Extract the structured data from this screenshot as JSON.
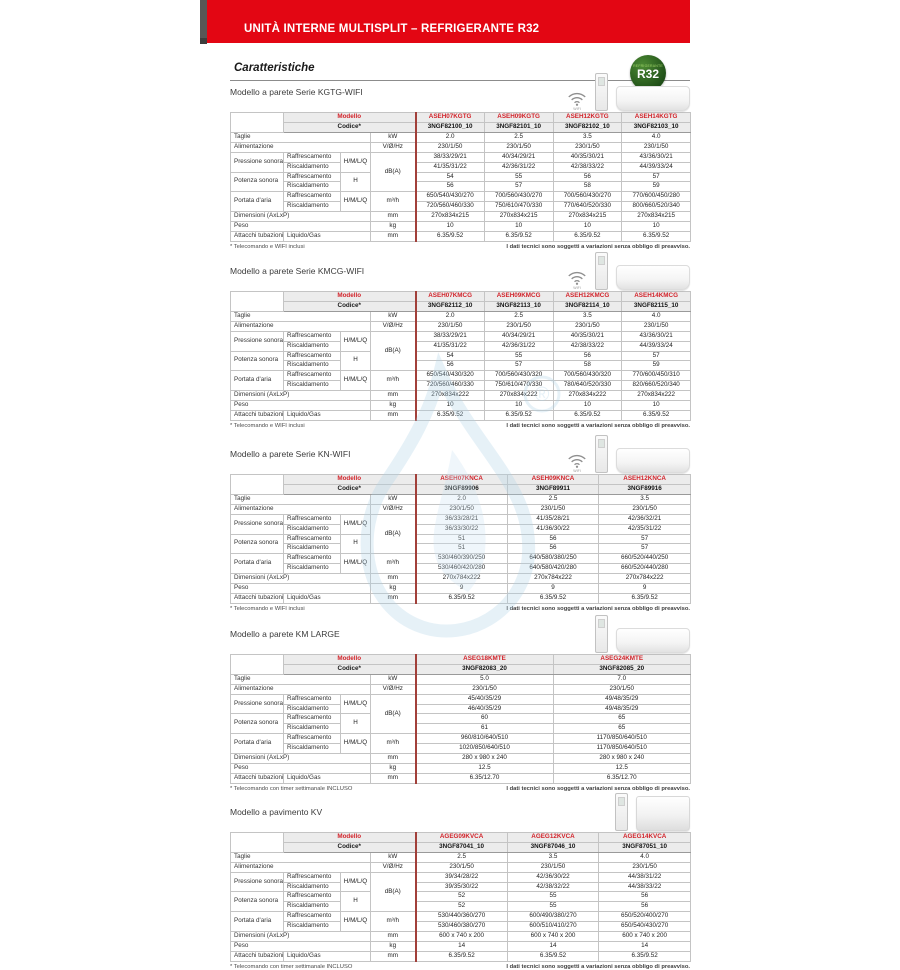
{
  "banner": {
    "title": "UNITÀ INTERNE MULTISPLIT – REFRIGERANTE R32"
  },
  "heading": "Caratteristiche",
  "badge": {
    "small": "REFRIGERANTE",
    "big": "R32"
  },
  "wifi_label": "WIFI",
  "labels": {
    "modello": "Modello",
    "codice": "Codice*",
    "taglie": "Taglie",
    "alimentazione": "Alimentazione",
    "pressione": "Pressione sonora",
    "potenza": "Potenza sonora",
    "portata": "Portata d'aria",
    "dimensioni": "Dimensioni (AxLxP)",
    "peso": "Peso",
    "attacchi": "Attacchi tubazioni",
    "raffrescamento": "Raffrescamento",
    "riscaldamento": "Riscaldamento",
    "liquido_gas": "Liquido/Gas",
    "hmlq": "H/M/L/Q",
    "h": "H",
    "u_kw": "kW",
    "u_vhz": "V/Ø/Hz",
    "u_dba": "dB(A)",
    "u_m3h": "m³/h",
    "u_mm": "mm",
    "u_kg": "kg"
  },
  "footnote_right": "I dati tecnici sono soggetti a variazioni senza obbligo di preavviso.",
  "colors": {
    "banner_red": "#e30613",
    "accent_red": "#d2232a",
    "rule_red": "#a2403a",
    "badge_green": "#1e4d17",
    "watermark_blue": "#aed2e8"
  },
  "tables": [
    {
      "title": "Modello a parete Serie KGTG-WIFI",
      "icons": [
        "wifi",
        "remote",
        "wall-unit"
      ],
      "models": [
        "ASEH07KGTG",
        "ASEH09KGTG",
        "ASEH12KGTG",
        "ASEH14KGTG"
      ],
      "codes": [
        "3NGF82100_10",
        "3NGF82101_10",
        "3NGF82102_10",
        "3NGF82103_10"
      ],
      "taglie": [
        "2.0",
        "2.5",
        "3.5",
        "4.0"
      ],
      "alimentazione": [
        "230/1/50",
        "230/1/50",
        "230/1/50",
        "230/1/50"
      ],
      "pressione": {
        "raff": [
          "38/33/29/21",
          "40/34/29/21",
          "40/35/30/21",
          "43/36/30/21"
        ],
        "risc": [
          "41/35/31/22",
          "42/36/31/22",
          "42/38/33/22",
          "44/39/33/24"
        ]
      },
      "potenza": {
        "raff": [
          "54",
          "55",
          "56",
          "57"
        ],
        "risc": [
          "56",
          "57",
          "58",
          "59"
        ]
      },
      "portata": {
        "raff": [
          "650/540/430/270",
          "700/560/430/270",
          "700/560/430/270",
          "770/600/450/280"
        ],
        "risc": [
          "720/560/460/330",
          "750/610/470/330",
          "770/640/520/330",
          "800/660/520/340"
        ]
      },
      "dimensioni": [
        "270x834x215",
        "270x834x215",
        "270x834x215",
        "270x834x215"
      ],
      "peso": [
        "10",
        "10",
        "10",
        "10"
      ],
      "attacchi": [
        "6.35/9.52",
        "6.35/9.52",
        "6.35/9.52",
        "6.35/9.52"
      ],
      "footnote": "* Telecomando e WIFI inclusi"
    },
    {
      "title": "Modello a parete Serie KMCG-WIFI",
      "icons": [
        "wifi",
        "remote",
        "wall-unit"
      ],
      "models": [
        "ASEH07KMCG",
        "ASEH09KMCG",
        "ASEH12KMCG",
        "ASEH14KMCG"
      ],
      "codes": [
        "3NGF82112_10",
        "3NGF82113_10",
        "3NGF82114_10",
        "3NGF82115_10"
      ],
      "taglie": [
        "2.0",
        "2.5",
        "3.5",
        "4.0"
      ],
      "alimentazione": [
        "230/1/50",
        "230/1/50",
        "230/1/50",
        "230/1/50"
      ],
      "pressione": {
        "raff": [
          "38/33/29/21",
          "40/34/29/21",
          "40/35/30/21",
          "43/36/30/21"
        ],
        "risc": [
          "41/35/31/22",
          "42/36/31/22",
          "42/38/33/22",
          "44/39/33/24"
        ]
      },
      "potenza": {
        "raff": [
          "54",
          "55",
          "56",
          "57"
        ],
        "risc": [
          "56",
          "57",
          "58",
          "59"
        ]
      },
      "portata": {
        "raff": [
          "650/540/430/320",
          "700/560/430/320",
          "700/560/430/320",
          "770/600/450/310"
        ],
        "risc": [
          "720/560/460/330",
          "750/610/470/330",
          "780/640/520/330",
          "820/660/520/340"
        ]
      },
      "dimensioni": [
        "270x834x222",
        "270x834x222",
        "270x834x222",
        "270x834x222"
      ],
      "peso": [
        "10",
        "10",
        "10",
        "10"
      ],
      "attacchi": [
        "6.35/9.52",
        "6.35/9.52",
        "6.35/9.52",
        "6.35/9.52"
      ],
      "footnote": "* Telecomando e WIFI inclusi"
    },
    {
      "title": "Modello a parete Serie KN-WIFI",
      "icons": [
        "wifi",
        "remote",
        "wall-unit"
      ],
      "models": [
        "ASEH07KNCA",
        "ASEH09KNCA",
        "ASEH12KNCA"
      ],
      "codes": [
        "3NGF89906",
        "3NGF89911",
        "3NGF89916"
      ],
      "taglie": [
        "2.0",
        "2.5",
        "3.5"
      ],
      "alimentazione": [
        "230/1/50",
        "230/1/50",
        "230/1/50"
      ],
      "pressione": {
        "raff": [
          "36/33/28/21",
          "41/35/28/21",
          "42/36/32/21"
        ],
        "risc": [
          "36/33/30/22",
          "41/36/30/22",
          "42/35/31/22"
        ]
      },
      "potenza": {
        "raff": [
          "51",
          "56",
          "57"
        ],
        "risc": [
          "51",
          "56",
          "57"
        ]
      },
      "portata": {
        "raff": [
          "530/460/390/250",
          "640/580/380/250",
          "660/520/440/250"
        ],
        "risc": [
          "530/460/420/280",
          "640/580/420/280",
          "660/520/440/280"
        ]
      },
      "dimensioni": [
        "270x784x222",
        "270x784x222",
        "270x784x222"
      ],
      "peso": [
        "9",
        "9",
        "9"
      ],
      "attacchi": [
        "6.35/9.52",
        "6.35/9.52",
        "6.35/9.52"
      ],
      "footnote": "* Telecomando e WIFI inclusi"
    },
    {
      "title": "Modello a parete KM LARGE",
      "icons": [
        "remote",
        "wall-unit"
      ],
      "models": [
        "ASEG18KMTE",
        "ASEG24KMTE"
      ],
      "codes": [
        "3NGF82083_20",
        "3NGF82085_20"
      ],
      "taglie": [
        "5.0",
        "7.0"
      ],
      "alimentazione": [
        "230/1/50",
        "230/1/50"
      ],
      "pressione": {
        "raff": [
          "45/40/35/29",
          "49/48/35/29"
        ],
        "risc": [
          "46/40/35/29",
          "49/48/35/29"
        ]
      },
      "potenza": {
        "raff": [
          "60",
          "65"
        ],
        "risc": [
          "61",
          "65"
        ]
      },
      "portata": {
        "raff": [
          "960/810/640/510",
          "1170/850/640/510"
        ],
        "risc": [
          "1020/850/640/510",
          "1170/850/640/510"
        ]
      },
      "dimensioni": [
        "280 x 980 x 240",
        "280 x 980 x 240"
      ],
      "peso": [
        "12.5",
        "12.5"
      ],
      "attacchi": [
        "6.35/12.70",
        "6.35/12.70"
      ],
      "footnote": "* Telecomando con timer settimanale INCLUSO"
    },
    {
      "title": "Modello a pavimento KV",
      "icons": [
        "remote",
        "floor-unit"
      ],
      "models": [
        "AGEG09KVCA",
        "AGEG12KVCA",
        "AGEG14KVCA"
      ],
      "codes": [
        "3NGF87041_10",
        "3NGF87046_10",
        "3NGF87051_10"
      ],
      "taglie": [
        "2.5",
        "3.5",
        "4.0"
      ],
      "alimentazione": [
        "230/1/50",
        "230/1/50",
        "230/1/50"
      ],
      "pressione": {
        "raff": [
          "39/34/28/22",
          "42/36/30/22",
          "44/38/31/22"
        ],
        "risc": [
          "39/35/30/22",
          "42/38/32/22",
          "44/38/33/22"
        ]
      },
      "potenza": {
        "raff": [
          "52",
          "55",
          "56"
        ],
        "risc": [
          "52",
          "55",
          "56"
        ]
      },
      "portata": {
        "raff": [
          "530/440/360/270",
          "600/490/380/270",
          "650/520/400/270"
        ],
        "risc": [
          "530/460/380/270",
          "600/510/410/270",
          "650/540/430/270"
        ]
      },
      "dimensioni": [
        "600 x 740 x 200",
        "600 x 740 x 200",
        "600 x 740 x 200"
      ],
      "peso": [
        "14",
        "14",
        "14"
      ],
      "attacchi": [
        "6.35/9.52",
        "6.35/9.52",
        "6.35/9.52"
      ],
      "footnote": "* Telecomando con timer settimanale INCLUSO"
    }
  ]
}
